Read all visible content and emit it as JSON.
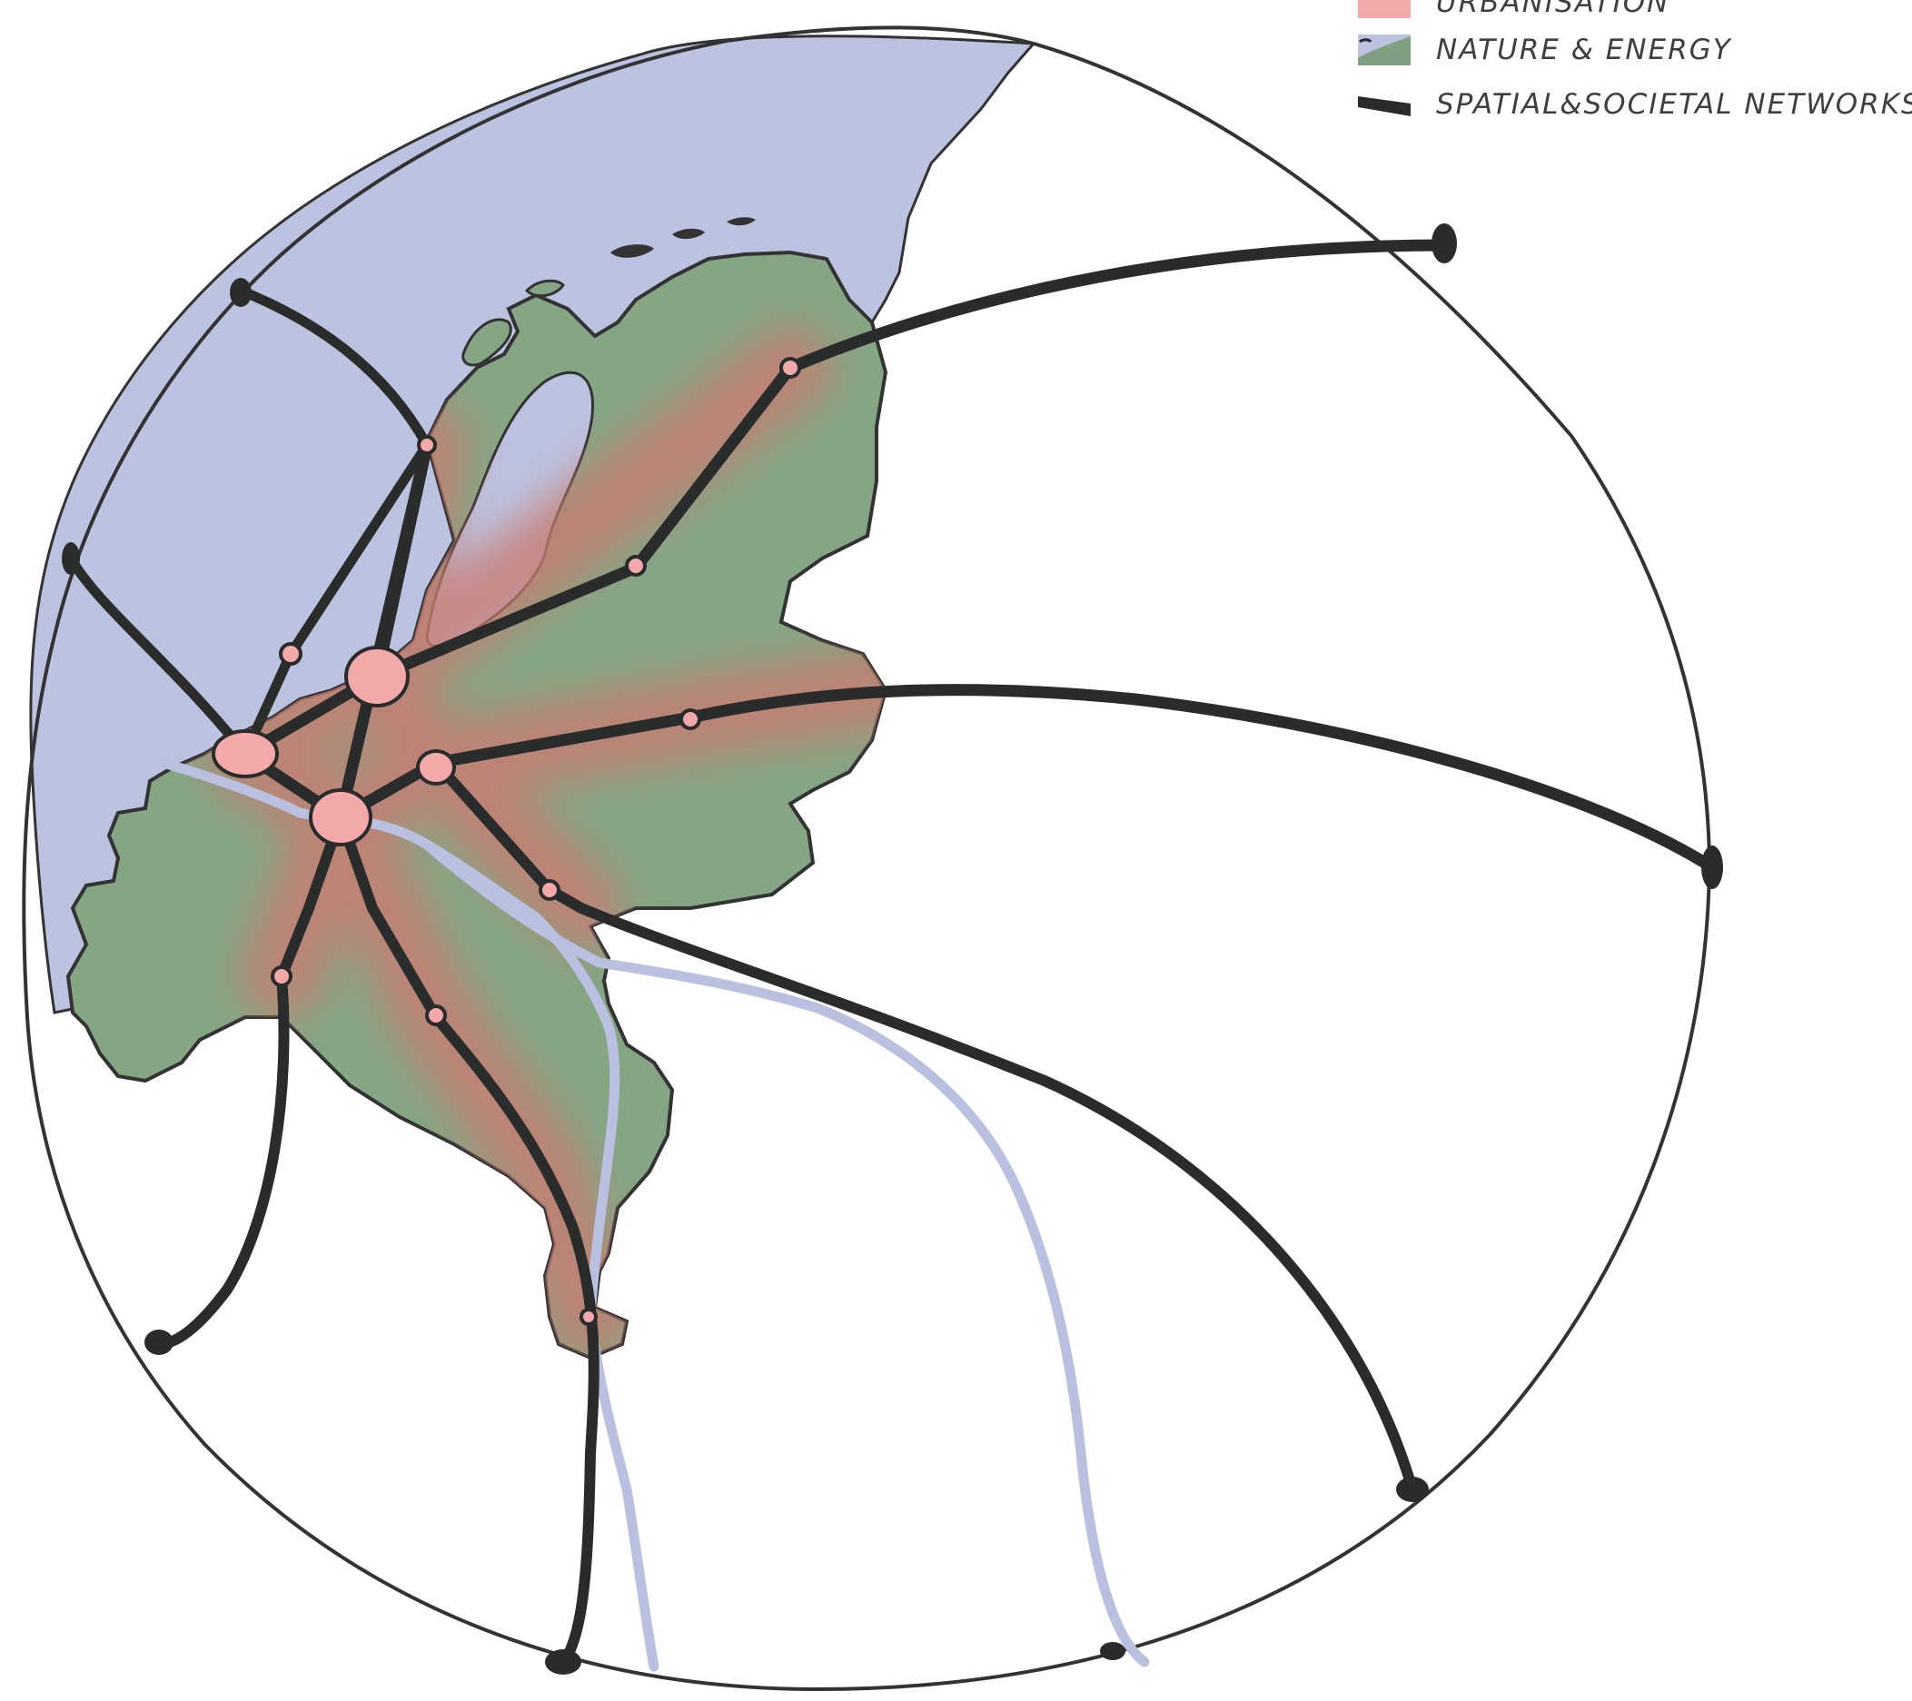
{
  "legend": {
    "items": [
      {
        "label": "URBANISATION",
        "swatch": "pink-swatch",
        "color": "#f3a9aa"
      },
      {
        "label": "NATURE & ENERGY",
        "swatch": "blue-green-swatch",
        "color": "#bcc3e0",
        "color2": "#7f9f80"
      },
      {
        "label": "SPATIAL&SOCIETAL NETWORKS",
        "swatch": "black-line-swatch",
        "color": "#2a2c2c"
      }
    ]
  },
  "colors": {
    "sea": "#bcc3e0",
    "land": "#86a585",
    "urban_glow": "#c97b72",
    "city": "#f3a9aa",
    "network": "#2a2c2c",
    "river": "#b9c0e0",
    "outline": "#333333"
  }
}
